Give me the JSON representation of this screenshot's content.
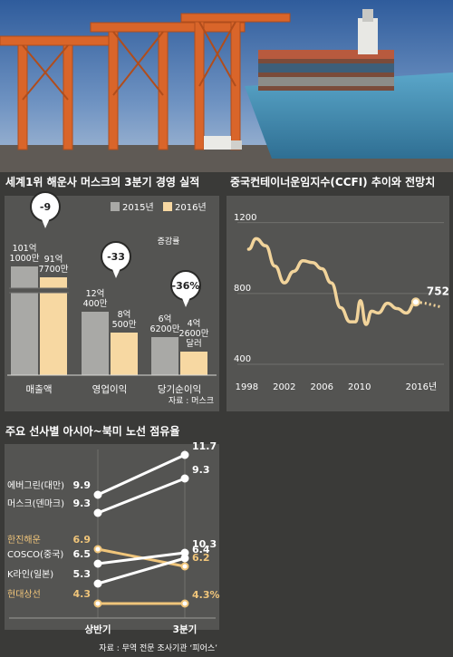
{
  "photo": {
    "description_icon": "container-ship-port-photo-icon"
  },
  "colors": {
    "bg_dark": "#3a3a38",
    "bg_chart": "#545452",
    "bar_2015": "#a9a9a6",
    "bar_2016": "#f7d8a2",
    "line_ccfi": "#f2d49b",
    "highlight": "#f0c57a",
    "white": "#ffffff"
  },
  "chart_data": [
    {
      "type": "bar",
      "title": "세계1위 해운사 머스크의 3분기 경영 실적",
      "legend": [
        "2015년",
        "2016년"
      ],
      "legend_position": "top-right",
      "categories": [
        "매출액",
        "영업이익",
        "당기순이익"
      ],
      "series": [
        {
          "name": "2015년",
          "values": [
            101.1,
            12.04,
            6.62
          ],
          "labels": [
            "101억\n1000만",
            "12억\n400만",
            "6억\n6200만"
          ]
        },
        {
          "name": "2016년",
          "values": [
            91.77,
            8.05,
            4.26
          ],
          "labels": [
            "91억\n7700만",
            "8억\n500만",
            "4억\n2600만\n달러"
          ]
        }
      ],
      "change_labels": [
        "-9",
        "-33",
        "-36%"
      ],
      "change_title": "증감률",
      "source": "자료 : 머스크"
    },
    {
      "type": "line",
      "title": "중국컨테이너운임지수(CCFI) 추이와 전망치",
      "x_ticks": [
        "1998",
        "2002",
        "2006",
        "2010",
        "2016년"
      ],
      "y_ticks": [
        "1200",
        "800",
        "400"
      ],
      "ylim": [
        400,
        1250
      ],
      "xlim": [
        1997,
        2019
      ],
      "x": [
        1998.2,
        1999,
        2000,
        2001,
        2002,
        2003,
        2004,
        2005,
        2006,
        2007,
        2008,
        2009,
        2009.6,
        2010.1,
        2010.7,
        2011.3,
        2012,
        2013,
        2014,
        2015,
        2016
      ],
      "y": [
        1050,
        1110,
        1070,
        955,
        860,
        925,
        985,
        975,
        940,
        860,
        720,
        640,
        640,
        760,
        625,
        700,
        690,
        745,
        715,
        690,
        752
      ],
      "forecast_x": [
        2016,
        2017,
        2018.6
      ],
      "forecast_y": [
        752,
        745,
        725
      ],
      "last_label": "752"
    },
    {
      "type": "line",
      "title": "주요 선사별 아시아~북미 노선 점유율",
      "categories": [
        "상반기",
        "3분기"
      ],
      "series": [
        {
          "name": "에버그린(대만)",
          "values": [
            9.9,
            11.7
          ],
          "labels": [
            "9.9",
            "11.7"
          ],
          "highlight": false
        },
        {
          "name": "머스크(덴마크)",
          "values": [
            9.3,
            9.3
          ],
          "labels": [
            "9.3",
            "9.3"
          ],
          "highlight": false
        },
        {
          "name": "한진해운",
          "values": [
            6.9,
            6.2
          ],
          "labels": [
            "6.9",
            "6.2"
          ],
          "highlight": true
        },
        {
          "name": "COSCO(중국)",
          "values": [
            6.5,
            10.3
          ],
          "labels": [
            "6.5",
            "10.3"
          ],
          "highlight": false
        },
        {
          "name": "K라인(일본)",
          "values": [
            5.3,
            6.4
          ],
          "labels": [
            "5.3",
            "6.4"
          ],
          "highlight": false
        },
        {
          "name": "현대상선",
          "values": [
            4.3,
            4.3
          ],
          "labels": [
            "4.3",
            "4.3%"
          ],
          "highlight": true
        }
      ],
      "source": "자료 : 무역 전문 조사기관 ‘피어스’"
    }
  ]
}
